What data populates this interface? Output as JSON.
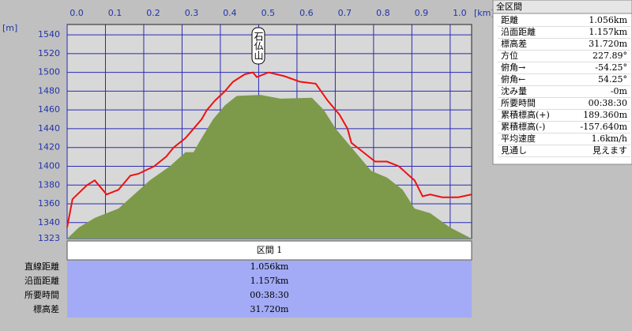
{
  "chart": {
    "type": "line",
    "x_unit": "[km]",
    "y_unit": "[m]",
    "annotation": "石仏山",
    "xlim": [
      0,
      1.056
    ],
    "ylim": [
      1323,
      1551
    ],
    "xticks": [
      {
        "value": 0,
        "label": "0.0"
      },
      0.1,
      0.2,
      0.3,
      0.4,
      0.5,
      0.6,
      0.7,
      0.8,
      0.9,
      {
        "value": 1,
        "label": "1.0"
      }
    ],
    "yticks": [
      1323,
      1340,
      1360,
      1380,
      1400,
      1420,
      1440,
      1460,
      1480,
      1500,
      1520,
      1540
    ],
    "grid": true,
    "route": {
      "color": "#ee1111",
      "x": [
        0,
        0.014,
        0.052,
        0.072,
        0.103,
        0.134,
        0.165,
        0.186,
        0.227,
        0.258,
        0.278,
        0.309,
        0.33,
        0.351,
        0.365,
        0.386,
        0.412,
        0.433,
        0.464,
        0.485,
        0.495,
        0.526,
        0.567,
        0.608,
        0.649,
        0.68,
        0.711,
        0.732,
        0.742,
        0.773,
        0.804,
        0.835,
        0.866,
        0.893,
        0.907,
        0.928,
        0.948,
        0.979,
        1.021,
        1.056
      ],
      "values": [
        1335,
        1365,
        1380,
        1385,
        1370,
        1375,
        1390,
        1392,
        1400,
        1410,
        1420,
        1430,
        1440,
        1450,
        1460,
        1470,
        1480,
        1490,
        1498,
        1500,
        1495,
        1500,
        1496,
        1490,
        1488,
        1470,
        1455,
        1440,
        1425,
        1415,
        1405,
        1405,
        1400,
        1390,
        1385,
        1368,
        1370,
        1367,
        1367,
        1370
      ]
    },
    "terrain": {
      "color": "#7c9a4a",
      "x": [
        0,
        0.031,
        0.072,
        0.134,
        0.175,
        0.216,
        0.268,
        0.309,
        0.33,
        0.351,
        0.381,
        0.412,
        0.443,
        0.505,
        0.557,
        0.639,
        0.67,
        0.701,
        0.732,
        0.763,
        0.794,
        0.835,
        0.876,
        0.907,
        0.948,
        0.999,
        1.056
      ],
      "values": [
        1323,
        1335,
        1345,
        1355,
        1370,
        1385,
        1400,
        1415,
        1415,
        1430,
        1450,
        1465,
        1475,
        1476,
        1472,
        1473,
        1460,
        1440,
        1425,
        1410,
        1395,
        1388,
        1375,
        1355,
        1350,
        1335,
        1323
      ]
    }
  },
  "summary": {
    "title": "全区間",
    "rows": [
      [
        "距離",
        "1.056km"
      ],
      [
        "沿面距離",
        "1.157km"
      ],
      [
        "標高差",
        "31.720m"
      ],
      [
        "方位",
        "227.89°"
      ],
      [
        "俯角→",
        "-54.25°"
      ],
      [
        "俯角←",
        "54.25°"
      ],
      [
        "沈み量",
        "-0m"
      ],
      [
        "所要時間",
        "00:38:30"
      ],
      [
        "累積標高(+)",
        "189.360m"
      ],
      [
        "累積標高(-)",
        "-157.640m"
      ],
      [
        "平均速度",
        "1.6km/h"
      ],
      [
        "見通し",
        "見えます"
      ]
    ]
  },
  "section": {
    "title": "区間 1",
    "rows": [
      [
        "直線距離",
        "1.056km"
      ],
      [
        "沿面距離",
        "1.157km"
      ],
      [
        "所要時間",
        "00:38:30"
      ],
      [
        "標高差",
        "31.720m"
      ]
    ]
  }
}
